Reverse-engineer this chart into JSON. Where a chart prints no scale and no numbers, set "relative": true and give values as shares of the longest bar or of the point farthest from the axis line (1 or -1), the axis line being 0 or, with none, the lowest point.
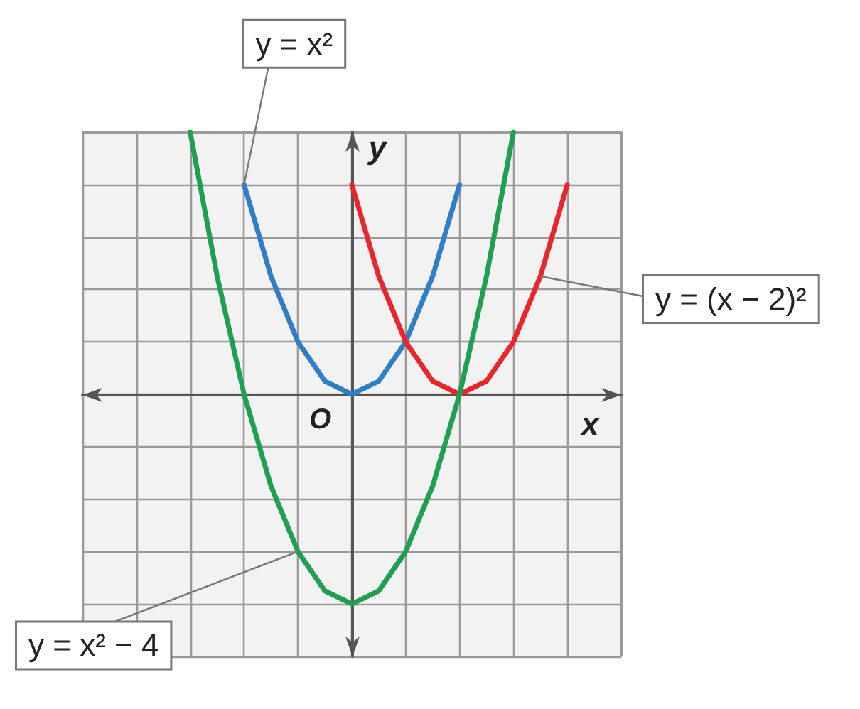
{
  "chart_data": {
    "type": "line",
    "xlabel": "x",
    "ylabel": "y",
    "relative": true,
    "categories": [
      null,
      null,
      null,
      null,
      null,
      null,
      null,
      null,
      null,
      null,
      null,
      null,
      null,
      null,
      null,
      null,
      null,
      null,
      null,
      null,
      null
    ],
    "grid": true,
    "marker": "none",
    "line_style": "solid",
    "series": [
      {
        "name": "y = x²",
        "color": "#2f7fc8",
        "values": [
          null,
          null,
          null,
          null,
          null,
          null,
          0.8,
          0.45,
          0.2,
          0.05,
          0,
          0.05,
          0.2,
          0.45,
          0.8,
          null,
          null,
          null,
          null,
          null,
          null
        ]
      },
      {
        "name": "y = (x − 2)²",
        "color": "#e8262b",
        "values": [
          null,
          null,
          null,
          null,
          null,
          null,
          null,
          null,
          null,
          null,
          0.8,
          0.45,
          0.2,
          0.05,
          0,
          0.05,
          0.2,
          0.45,
          0.8,
          null,
          null
        ]
      },
      {
        "name": "y = x² − 4",
        "color": "#1fa050",
        "values": [
          null,
          null,
          null,
          null,
          1,
          0.45,
          0,
          -0.35,
          -0.6,
          -0.75,
          -0.8,
          -0.75,
          -0.6,
          -0.35,
          0,
          0.45,
          1,
          null,
          null,
          null,
          null
        ]
      }
    ],
    "annotations": [
      "O"
    ]
  }
}
